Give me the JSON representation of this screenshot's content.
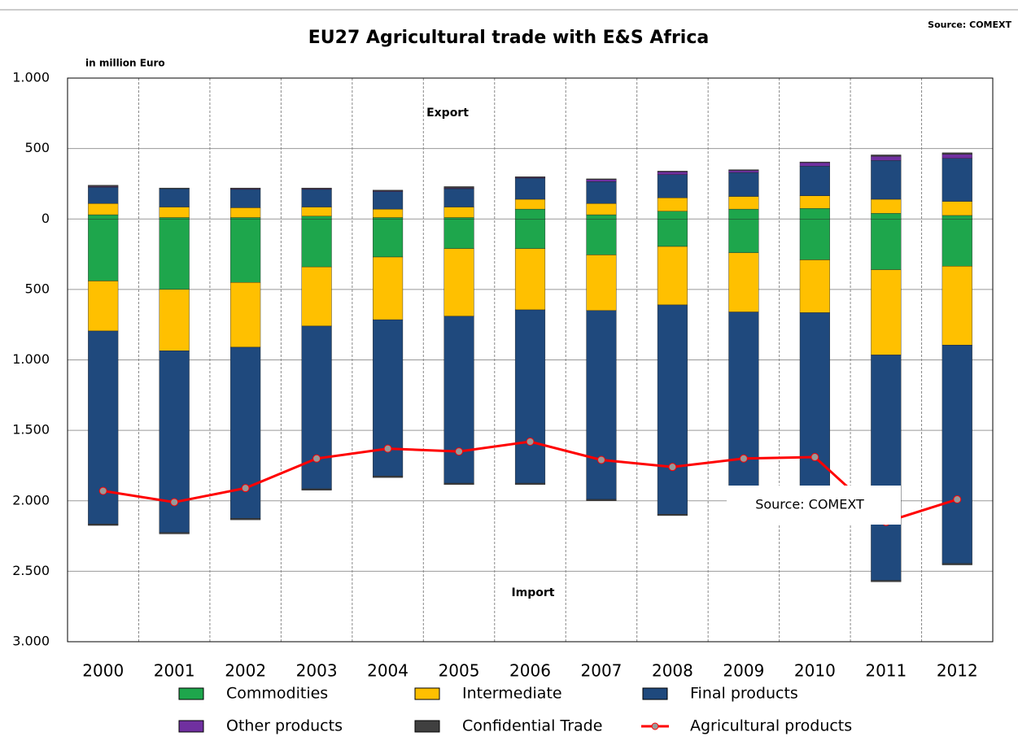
{
  "chart_data": {
    "type": "bar",
    "title": "EU27 Agricultural trade with E&S Africa",
    "y_label": "in million Euro",
    "annotations": [
      "Export",
      "Import",
      "Source: COMEXT",
      "Source: COMEXT"
    ],
    "categories": [
      "2000",
      "2001",
      "2002",
      "2003",
      "2004",
      "2005",
      "2006",
      "2007",
      "2008",
      "2009",
      "2010",
      "2011",
      "2012"
    ],
    "series": [
      {
        "name": "Commodities",
        "color": "#1ea64c",
        "export": [
          30,
          10,
          10,
          20,
          10,
          10,
          70,
          30,
          55,
          70,
          75,
          40,
          25
        ],
        "import": [
          -440,
          -500,
          -450,
          -340,
          -270,
          -210,
          -210,
          -255,
          -195,
          -240,
          -290,
          -360,
          -335
        ]
      },
      {
        "name": "Intermediate",
        "color": "#ffc000",
        "export": [
          80,
          75,
          70,
          65,
          60,
          75,
          70,
          80,
          95,
          90,
          90,
          100,
          100
        ],
        "import": [
          -355,
          -435,
          -460,
          -420,
          -445,
          -480,
          -435,
          -395,
          -415,
          -420,
          -375,
          -605,
          -560
        ]
      },
      {
        "name": "Final products",
        "color": "#1f497d",
        "export": [
          115,
          130,
          130,
          125,
          125,
          130,
          150,
          155,
          165,
          170,
          210,
          275,
          305
        ],
        "import": [
          -1370,
          -1290,
          -1215,
          -1155,
          -1110,
          -1185,
          -1230,
          -1340,
          -1485,
          -1440,
          -1435,
          -1600,
          -1550
        ]
      },
      {
        "name": "Other products",
        "color": "#7030a0",
        "export": [
          5,
          0,
          5,
          5,
          5,
          5,
          5,
          15,
          20,
          15,
          25,
          30,
          30
        ],
        "import": [
          0,
          0,
          0,
          0,
          0,
          0,
          0,
          0,
          0,
          0,
          0,
          0,
          0
        ]
      },
      {
        "name": "Confidential Trade",
        "color": "#404040",
        "export": [
          10,
          5,
          5,
          5,
          5,
          10,
          5,
          5,
          5,
          5,
          5,
          10,
          10
        ],
        "import": [
          -10,
          -10,
          -10,
          -10,
          -10,
          -10,
          -10,
          -10,
          -10,
          -10,
          -10,
          -10,
          -10
        ]
      },
      {
        "name": "Agricultural products",
        "color": "#ff0000",
        "type": "line",
        "values": [
          -1930,
          -2010,
          -1910,
          -1700,
          -1630,
          -1650,
          -1580,
          -1710,
          -1760,
          -1700,
          -1690,
          -2150,
          -1990
        ]
      }
    ],
    "ylim": [
      -3000,
      1000
    ],
    "yticks": [
      {
        "value": 1000,
        "label": "1.000"
      },
      500,
      0,
      {
        "value": -500,
        "label": "500"
      },
      {
        "value": -1000,
        "label": "1.000"
      },
      {
        "value": -1500,
        "label": "1.500"
      },
      {
        "value": -2000,
        "label": "2.000"
      },
      {
        "value": -2500,
        "label": "2.500"
      },
      {
        "value": -3000,
        "label": "3.000"
      }
    ],
    "grid": true
  }
}
